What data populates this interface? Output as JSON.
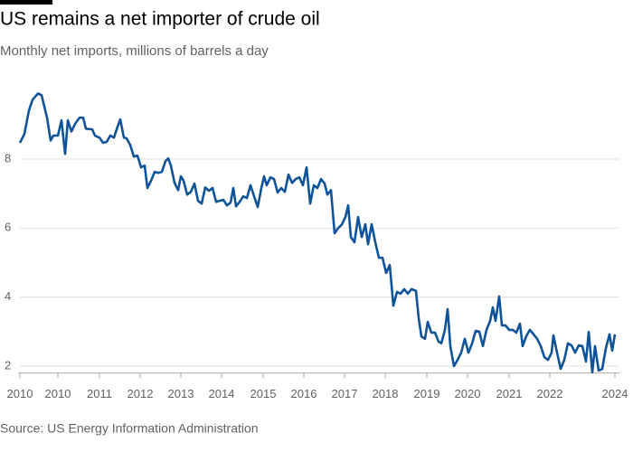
{
  "chart_data": {
    "type": "line",
    "title": "US remains a net importer of crude oil",
    "subtitle": "Monthly net imports, millions of barrels a day",
    "source": "Source: US Energy Information Administration",
    "x": [
      0,
      1.25,
      2.5,
      3.5,
      5,
      6,
      7.5,
      8.5,
      9.25,
      10.5,
      11.5,
      12.5,
      13.25,
      14.25,
      15.25,
      16.5,
      17.5,
      18.25,
      20,
      20.75,
      22,
      23,
      24,
      25,
      26,
      27,
      27.75,
      28.75,
      29.5,
      30.5,
      31.5,
      32.5,
      33.5,
      34.5,
      35.25,
      36.25,
      37.25,
      38.25,
      39.25,
      40.25,
      41,
      41.75,
      42.75,
      43.75,
      44.5,
      45.25,
      46.25,
      47.25,
      48.25,
      49.25,
      50.25,
      51.25,
      52.25,
      53.25,
      54.25,
      55.25,
      56.25,
      57.25,
      58.25,
      59,
      59.75,
      60.75,
      61.75,
      62.75,
      63.75,
      64.75,
      65.75,
      66.75,
      67.5,
      68.25,
      69.25,
      70.25,
      71.25,
      72.25,
      73.25,
      74.25,
      75.25,
      76.25,
      77.25,
      78.25,
      79.25,
      80.25,
      81.25,
      82.25,
      83.25,
      84.25,
      85,
      86,
      87,
      88,
      89,
      90,
      90.75,
      91.5,
      92.5,
      93.5,
      94.5,
      95.5,
      96.25,
      97.25,
      98.25,
      99.25,
      100.25,
      101.25,
      102.25,
      103.25,
      104.25,
      105.25,
      106.25,
      107.25,
      108.25,
      109.5,
      110.25,
      111,
      112,
      112.75,
      113.75,
      114.75,
      115.75,
      116.5,
      117.5,
      118.25,
      119,
      120,
      121,
      122,
      123,
      124,
      125,
      126,
      127,
      128,
      129,
      130,
      130.75,
      131.5,
      132.5,
      133.25,
      134.25,
      135.25,
      136.25,
      137.25,
      138.25,
      139,
      140,
      141,
      142,
      143,
      144,
      145,
      146,
      147,
      147.5,
      148.5,
      149.5,
      150.5,
      151.5,
      152.5,
      153.5,
      154.5,
      155.5,
      156.5,
      157.25,
      158.25,
      159,
      160,
      161,
      162,
      163,
      163.75,
      164.5
    ],
    "series": [
      {
        "name": "Net imports",
        "color": "#0f5499",
        "values": [
          8.47,
          8.73,
          9.41,
          9.72,
          9.9,
          9.85,
          9.2,
          8.54,
          8.68,
          8.68,
          9.12,
          8.15,
          9.12,
          8.8,
          9.02,
          9.2,
          9.2,
          8.88,
          8.86,
          8.68,
          8.62,
          8.47,
          8.5,
          8.68,
          8.62,
          8.94,
          9.15,
          8.62,
          8.6,
          8.41,
          8.07,
          8.1,
          7.76,
          7.81,
          7.16,
          7.37,
          7.63,
          7.6,
          7.63,
          7.94,
          8.02,
          7.81,
          7.31,
          7.1,
          7.5,
          7.37,
          6.97,
          7.05,
          7.29,
          6.79,
          6.71,
          7.18,
          7.08,
          7.16,
          6.76,
          6.79,
          6.82,
          6.66,
          6.74,
          7.16,
          6.63,
          6.76,
          6.92,
          6.87,
          7.24,
          6.92,
          6.61,
          7.16,
          7.5,
          7.24,
          7.47,
          7.42,
          7.03,
          7.16,
          7.05,
          7.55,
          7.31,
          7.42,
          7.47,
          7.24,
          7.76,
          6.71,
          7.24,
          7.16,
          7.42,
          7.29,
          6.97,
          7.1,
          5.85,
          6.0,
          6.1,
          6.32,
          6.66,
          5.74,
          5.59,
          6.32,
          5.74,
          6.11,
          5.53,
          6.11,
          5.59,
          5.14,
          5.14,
          4.7,
          4.93,
          3.75,
          4.15,
          4.1,
          4.23,
          4.1,
          4.23,
          4.18,
          3.39,
          2.86,
          2.79,
          3.28,
          2.97,
          2.97,
          2.71,
          2.66,
          3.05,
          3.65,
          2.58,
          2.0,
          2.18,
          2.39,
          2.79,
          2.39,
          2.65,
          3.02,
          3.0,
          2.58,
          3.05,
          3.31,
          3.7,
          3.31,
          4.02,
          3.18,
          3.18,
          3.05,
          3.05,
          2.97,
          3.23,
          2.58,
          2.87,
          3.05,
          2.92,
          2.79,
          2.58,
          2.26,
          2.18,
          2.39,
          2.89,
          2.39,
          1.92,
          2.18,
          2.66,
          2.6,
          2.39,
          2.6,
          2.58,
          2.13,
          2.99,
          1.82,
          2.58,
          1.87,
          1.92,
          2.52,
          2.92,
          2.45,
          2.92
        ]
      }
    ],
    "xlim": [
      0,
      164.5
    ],
    "xticks": [
      {
        "value": 0,
        "label": "2010"
      },
      {
        "value": 10.5,
        "label": "2010"
      },
      {
        "value": 22,
        "label": "2011"
      },
      {
        "value": 33.25,
        "label": "2012"
      },
      {
        "value": 44.5,
        "label": "2013"
      },
      {
        "value": 55.75,
        "label": "2014"
      },
      {
        "value": 67.25,
        "label": "2015"
      },
      {
        "value": 78.5,
        "label": "2016"
      },
      {
        "value": 89.75,
        "label": "2017"
      },
      {
        "value": 101,
        "label": "2018"
      },
      {
        "value": 112.5,
        "label": "2019"
      },
      {
        "value": 123.75,
        "label": "2020"
      },
      {
        "value": 135.25,
        "label": "2021"
      },
      {
        "value": 146.5,
        "label": "2022"
      },
      {
        "value": 164.5,
        "label": "2024"
      }
    ],
    "ylim": [
      1.8,
      10.2
    ],
    "yticks": [
      2,
      4,
      6,
      8
    ],
    "grid": true
  }
}
